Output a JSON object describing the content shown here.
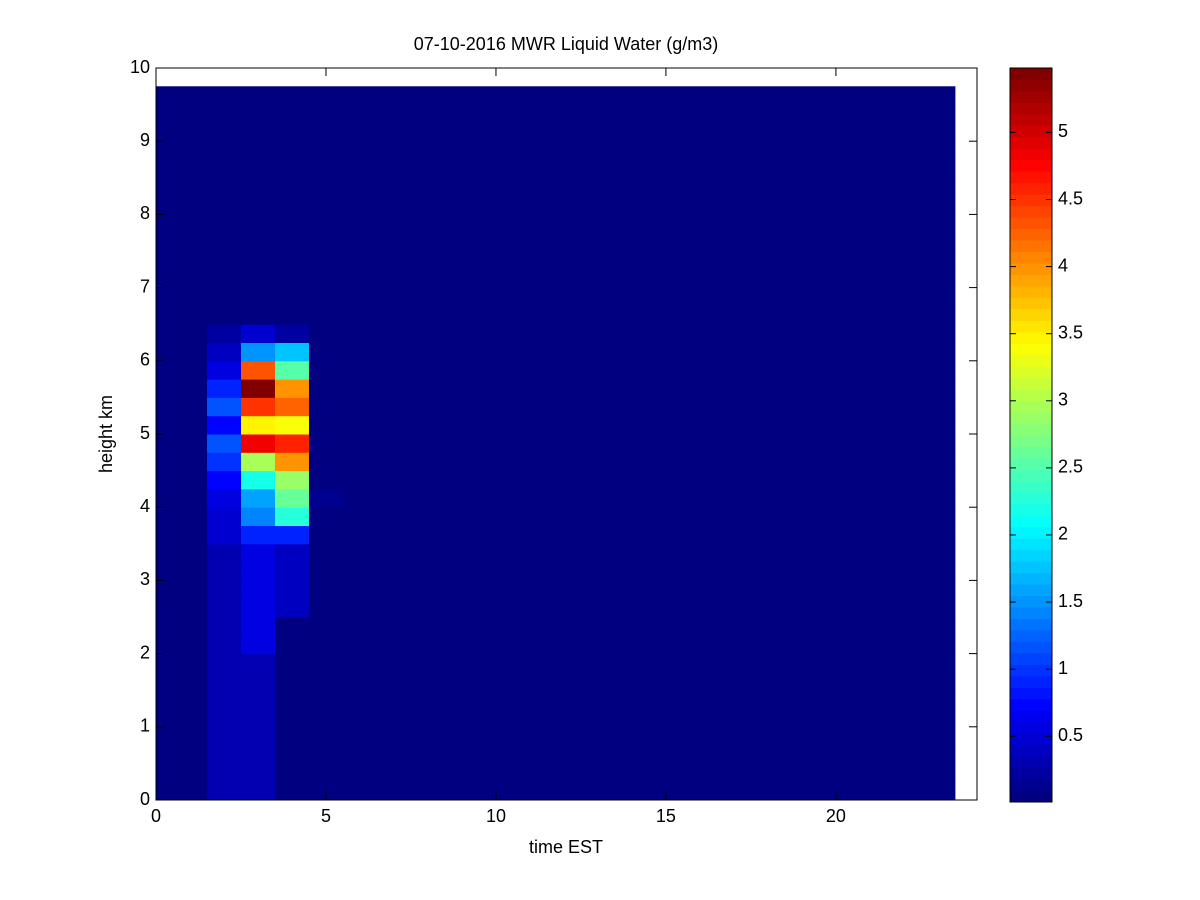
{
  "chart_data": {
    "type": "heatmap",
    "title": "07-10-2016 MWR Liquid Water (g/m3)",
    "x_label": "time EST",
    "y_label": "height km",
    "xlim": [
      0,
      24.15
    ],
    "xticks": [
      0,
      5,
      10,
      15,
      20
    ],
    "ylim": [
      0,
      10
    ],
    "yticks": [
      0,
      1,
      2,
      3,
      4,
      5,
      6,
      7,
      8,
      9,
      10
    ],
    "colormap": "jet",
    "colormap_levels": 64,
    "clim": [
      0.01,
      5.48
    ],
    "cticks": [
      0.5,
      1,
      1.5,
      2,
      2.5,
      3,
      3.5,
      4,
      4.5,
      5
    ],
    "x_edges": [
      0,
      0.5,
      1.5,
      2.5,
      3.5,
      4.5,
      5.5,
      6.5,
      7.5,
      8.5,
      9.5,
      10.5,
      11.5,
      12.5,
      13.5,
      14.5,
      15.5,
      16.5,
      17.5,
      18.5,
      19.5,
      20.5,
      21.5,
      22.5,
      23.5
    ],
    "y_edges": [
      0,
      0.25,
      0.5,
      0.75,
      1,
      1.25,
      1.5,
      1.75,
      2,
      2.25,
      2.5,
      2.75,
      3,
      3.25,
      3.5,
      3.75,
      4,
      4.25,
      4.5,
      4.75,
      5,
      5.25,
      5.5,
      5.75,
      6,
      6.25,
      6.5,
      6.75,
      7,
      7.25,
      7.5,
      7.75,
      8,
      8.25,
      8.5,
      8.75,
      9,
      9.25,
      9.5,
      9.75
    ],
    "z": [
      [
        0.05,
        0.05,
        0.3,
        0.3,
        0.05,
        0.05,
        0.05,
        0.05,
        0.05,
        0.05,
        0.05,
        0.05,
        0.05,
        0.05,
        0.05,
        0.05,
        0.05,
        0.05,
        0.05,
        0.05,
        0.05,
        0.05,
        0.05,
        0.05
      ],
      [
        0.05,
        0.05,
        0.3,
        0.3,
        0.05,
        0.05,
        0.05,
        0.05,
        0.05,
        0.05,
        0.05,
        0.05,
        0.05,
        0.05,
        0.05,
        0.05,
        0.05,
        0.05,
        0.05,
        0.05,
        0.05,
        0.05,
        0.05,
        0.05
      ],
      [
        0.05,
        0.05,
        0.3,
        0.3,
        0.05,
        0.05,
        0.05,
        0.05,
        0.05,
        0.05,
        0.05,
        0.05,
        0.05,
        0.05,
        0.05,
        0.05,
        0.05,
        0.05,
        0.05,
        0.05,
        0.05,
        0.05,
        0.05,
        0.05
      ],
      [
        0.05,
        0.05,
        0.3,
        0.3,
        0.05,
        0.05,
        0.05,
        0.05,
        0.05,
        0.05,
        0.05,
        0.05,
        0.05,
        0.05,
        0.05,
        0.05,
        0.05,
        0.05,
        0.05,
        0.05,
        0.05,
        0.05,
        0.05,
        0.05
      ],
      [
        0.05,
        0.05,
        0.3,
        0.3,
        0.05,
        0.05,
        0.05,
        0.05,
        0.05,
        0.05,
        0.05,
        0.05,
        0.05,
        0.05,
        0.05,
        0.05,
        0.05,
        0.05,
        0.05,
        0.05,
        0.05,
        0.05,
        0.05,
        0.05
      ],
      [
        0.05,
        0.05,
        0.3,
        0.3,
        0.05,
        0.05,
        0.05,
        0.05,
        0.05,
        0.05,
        0.05,
        0.05,
        0.05,
        0.05,
        0.05,
        0.05,
        0.05,
        0.05,
        0.05,
        0.05,
        0.05,
        0.05,
        0.05,
        0.05
      ],
      [
        0.05,
        0.05,
        0.3,
        0.3,
        0.05,
        0.05,
        0.05,
        0.05,
        0.05,
        0.05,
        0.05,
        0.05,
        0.05,
        0.05,
        0.05,
        0.05,
        0.05,
        0.05,
        0.05,
        0.05,
        0.05,
        0.05,
        0.05,
        0.05
      ],
      [
        0.05,
        0.05,
        0.3,
        0.3,
        0.05,
        0.05,
        0.05,
        0.05,
        0.05,
        0.05,
        0.05,
        0.05,
        0.05,
        0.05,
        0.05,
        0.05,
        0.05,
        0.05,
        0.05,
        0.05,
        0.05,
        0.05,
        0.05,
        0.05
      ],
      [
        0.05,
        0.05,
        0.35,
        0.6,
        0.05,
        0.05,
        0.05,
        0.05,
        0.05,
        0.05,
        0.05,
        0.05,
        0.05,
        0.05,
        0.05,
        0.05,
        0.05,
        0.05,
        0.05,
        0.05,
        0.05,
        0.05,
        0.05,
        0.05
      ],
      [
        0.05,
        0.05,
        0.35,
        0.6,
        0.05,
        0.05,
        0.05,
        0.05,
        0.05,
        0.05,
        0.05,
        0.05,
        0.05,
        0.05,
        0.05,
        0.05,
        0.05,
        0.05,
        0.05,
        0.05,
        0.05,
        0.05,
        0.05,
        0.05
      ],
      [
        0.05,
        0.05,
        0.35,
        0.6,
        0.4,
        0.05,
        0.05,
        0.05,
        0.05,
        0.05,
        0.05,
        0.05,
        0.05,
        0.05,
        0.05,
        0.05,
        0.05,
        0.05,
        0.05,
        0.05,
        0.05,
        0.05,
        0.05,
        0.05
      ],
      [
        0.05,
        0.05,
        0.35,
        0.6,
        0.4,
        0.05,
        0.05,
        0.05,
        0.05,
        0.05,
        0.05,
        0.05,
        0.05,
        0.05,
        0.05,
        0.05,
        0.05,
        0.05,
        0.05,
        0.05,
        0.05,
        0.05,
        0.05,
        0.05
      ],
      [
        0.05,
        0.05,
        0.35,
        0.6,
        0.4,
        0.05,
        0.05,
        0.05,
        0.05,
        0.05,
        0.05,
        0.05,
        0.05,
        0.05,
        0.05,
        0.05,
        0.05,
        0.05,
        0.05,
        0.05,
        0.05,
        0.05,
        0.05,
        0.05
      ],
      [
        0.05,
        0.05,
        0.35,
        0.6,
        0.4,
        0.05,
        0.05,
        0.05,
        0.05,
        0.05,
        0.05,
        0.05,
        0.05,
        0.05,
        0.05,
        0.05,
        0.05,
        0.05,
        0.05,
        0.05,
        0.05,
        0.05,
        0.05,
        0.05
      ],
      [
        0.05,
        0.05,
        0.5,
        0.9,
        0.9,
        0.05,
        0.05,
        0.05,
        0.05,
        0.05,
        0.05,
        0.05,
        0.05,
        0.05,
        0.05,
        0.05,
        0.05,
        0.05,
        0.05,
        0.05,
        0.05,
        0.05,
        0.05,
        0.05
      ],
      [
        0.05,
        0.05,
        0.5,
        1.4,
        2.3,
        0.05,
        0.05,
        0.05,
        0.05,
        0.05,
        0.05,
        0.05,
        0.05,
        0.05,
        0.05,
        0.05,
        0.05,
        0.05,
        0.05,
        0.05,
        0.05,
        0.05,
        0.05,
        0.05
      ],
      [
        0.05,
        0.05,
        0.6,
        1.6,
        2.6,
        0.15,
        0.05,
        0.05,
        0.05,
        0.05,
        0.05,
        0.05,
        0.05,
        0.05,
        0.05,
        0.05,
        0.05,
        0.05,
        0.05,
        0.05,
        0.05,
        0.05,
        0.05,
        0.05
      ],
      [
        0.05,
        0.05,
        0.7,
        2.2,
        2.9,
        0.05,
        0.05,
        0.05,
        0.05,
        0.05,
        0.05,
        0.05,
        0.05,
        0.05,
        0.05,
        0.05,
        0.05,
        0.05,
        0.05,
        0.05,
        0.05,
        0.05,
        0.05,
        0.05
      ],
      [
        0.05,
        0.05,
        1.0,
        3.0,
        4.0,
        0.05,
        0.05,
        0.05,
        0.05,
        0.05,
        0.05,
        0.05,
        0.05,
        0.05,
        0.05,
        0.05,
        0.05,
        0.05,
        0.05,
        0.05,
        0.05,
        0.05,
        0.05,
        0.05
      ],
      [
        0.05,
        0.05,
        1.2,
        4.8,
        4.6,
        0.05,
        0.05,
        0.05,
        0.05,
        0.05,
        0.05,
        0.05,
        0.05,
        0.05,
        0.05,
        0.05,
        0.05,
        0.05,
        0.05,
        0.05,
        0.05,
        0.05,
        0.05,
        0.05
      ],
      [
        0.05,
        0.05,
        0.7,
        3.5,
        3.4,
        0.05,
        0.05,
        0.05,
        0.05,
        0.05,
        0.05,
        0.05,
        0.05,
        0.05,
        0.05,
        0.05,
        0.05,
        0.05,
        0.05,
        0.05,
        0.05,
        0.05,
        0.05,
        0.05
      ],
      [
        0.05,
        0.05,
        1.2,
        4.5,
        4.2,
        0.05,
        0.05,
        0.05,
        0.05,
        0.05,
        0.05,
        0.05,
        0.05,
        0.05,
        0.05,
        0.05,
        0.05,
        0.05,
        0.05,
        0.05,
        0.05,
        0.05,
        0.05,
        0.05
      ],
      [
        0.05,
        0.05,
        0.9,
        5.4,
        4.0,
        0.05,
        0.05,
        0.05,
        0.05,
        0.05,
        0.05,
        0.05,
        0.05,
        0.05,
        0.05,
        0.05,
        0.05,
        0.05,
        0.05,
        0.05,
        0.05,
        0.05,
        0.05,
        0.05
      ],
      [
        0.05,
        0.05,
        0.6,
        4.3,
        2.5,
        0.05,
        0.05,
        0.05,
        0.05,
        0.05,
        0.05,
        0.05,
        0.05,
        0.05,
        0.05,
        0.05,
        0.05,
        0.05,
        0.05,
        0.05,
        0.05,
        0.05,
        0.05,
        0.05
      ],
      [
        0.05,
        0.05,
        0.4,
        1.5,
        1.8,
        0.05,
        0.05,
        0.05,
        0.05,
        0.05,
        0.05,
        0.05,
        0.05,
        0.05,
        0.05,
        0.05,
        0.05,
        0.05,
        0.05,
        0.05,
        0.05,
        0.05,
        0.05,
        0.05
      ],
      [
        0.05,
        0.05,
        0.2,
        0.5,
        0.2,
        0.05,
        0.05,
        0.05,
        0.05,
        0.05,
        0.05,
        0.05,
        0.05,
        0.05,
        0.05,
        0.05,
        0.05,
        0.05,
        0.05,
        0.05,
        0.05,
        0.05,
        0.05,
        0.05
      ],
      [
        0.05,
        0.05,
        0.05,
        0.05,
        0.05,
        0.05,
        0.05,
        0.05,
        0.05,
        0.05,
        0.05,
        0.05,
        0.05,
        0.05,
        0.05,
        0.05,
        0.05,
        0.05,
        0.05,
        0.05,
        0.05,
        0.05,
        0.05,
        0.05
      ],
      [
        0.05,
        0.05,
        0.05,
        0.05,
        0.05,
        0.05,
        0.05,
        0.05,
        0.05,
        0.05,
        0.05,
        0.05,
        0.05,
        0.05,
        0.05,
        0.05,
        0.05,
        0.05,
        0.05,
        0.05,
        0.05,
        0.05,
        0.05,
        0.05
      ],
      [
        0.05,
        0.05,
        0.05,
        0.05,
        0.05,
        0.05,
        0.05,
        0.05,
        0.05,
        0.05,
        0.05,
        0.05,
        0.05,
        0.05,
        0.05,
        0.05,
        0.05,
        0.05,
        0.05,
        0.05,
        0.05,
        0.05,
        0.05,
        0.05
      ],
      [
        0.05,
        0.05,
        0.05,
        0.05,
        0.05,
        0.05,
        0.05,
        0.05,
        0.05,
        0.05,
        0.05,
        0.05,
        0.05,
        0.05,
        0.05,
        0.05,
        0.05,
        0.05,
        0.05,
        0.05,
        0.05,
        0.05,
        0.05,
        0.05
      ],
      [
        0.05,
        0.05,
        0.05,
        0.05,
        0.05,
        0.05,
        0.05,
        0.05,
        0.05,
        0.05,
        0.05,
        0.05,
        0.05,
        0.05,
        0.05,
        0.05,
        0.05,
        0.05,
        0.05,
        0.05,
        0.05,
        0.05,
        0.05,
        0.05
      ],
      [
        0.05,
        0.05,
        0.05,
        0.05,
        0.05,
        0.05,
        0.05,
        0.05,
        0.05,
        0.05,
        0.05,
        0.05,
        0.05,
        0.05,
        0.05,
        0.05,
        0.05,
        0.05,
        0.05,
        0.05,
        0.05,
        0.05,
        0.05,
        0.05
      ],
      [
        0.05,
        0.05,
        0.05,
        0.05,
        0.05,
        0.05,
        0.05,
        0.05,
        0.05,
        0.05,
        0.05,
        0.05,
        0.05,
        0.05,
        0.05,
        0.05,
        0.05,
        0.05,
        0.05,
        0.05,
        0.05,
        0.05,
        0.05,
        0.05
      ],
      [
        0.05,
        0.05,
        0.05,
        0.05,
        0.05,
        0.05,
        0.05,
        0.05,
        0.05,
        0.05,
        0.05,
        0.05,
        0.05,
        0.05,
        0.05,
        0.05,
        0.05,
        0.05,
        0.05,
        0.05,
        0.05,
        0.05,
        0.05,
        0.05
      ],
      [
        0.05,
        0.05,
        0.05,
        0.05,
        0.05,
        0.05,
        0.05,
        0.05,
        0.05,
        0.05,
        0.05,
        0.05,
        0.05,
        0.05,
        0.05,
        0.05,
        0.05,
        0.05,
        0.05,
        0.05,
        0.05,
        0.05,
        0.05,
        0.05
      ],
      [
        0.05,
        0.05,
        0.05,
        0.05,
        0.05,
        0.05,
        0.05,
        0.05,
        0.05,
        0.05,
        0.05,
        0.05,
        0.05,
        0.05,
        0.05,
        0.05,
        0.05,
        0.05,
        0.05,
        0.05,
        0.05,
        0.05,
        0.05,
        0.05
      ],
      [
        0.05,
        0.05,
        0.05,
        0.05,
        0.05,
        0.05,
        0.05,
        0.05,
        0.05,
        0.05,
        0.05,
        0.05,
        0.05,
        0.05,
        0.05,
        0.05,
        0.05,
        0.05,
        0.05,
        0.05,
        0.05,
        0.05,
        0.05,
        0.05
      ],
      [
        0.05,
        0.05,
        0.05,
        0.05,
        0.05,
        0.05,
        0.05,
        0.05,
        0.05,
        0.05,
        0.05,
        0.05,
        0.05,
        0.05,
        0.05,
        0.05,
        0.05,
        0.05,
        0.05,
        0.05,
        0.05,
        0.05,
        0.05,
        0.05
      ],
      [
        0.05,
        0.05,
        0.05,
        0.05,
        0.05,
        0.05,
        0.05,
        0.05,
        0.05,
        0.05,
        0.05,
        0.05,
        0.05,
        0.05,
        0.05,
        0.05,
        0.05,
        0.05,
        0.05,
        0.05,
        0.05,
        0.05,
        0.05,
        0.05
      ]
    ]
  }
}
